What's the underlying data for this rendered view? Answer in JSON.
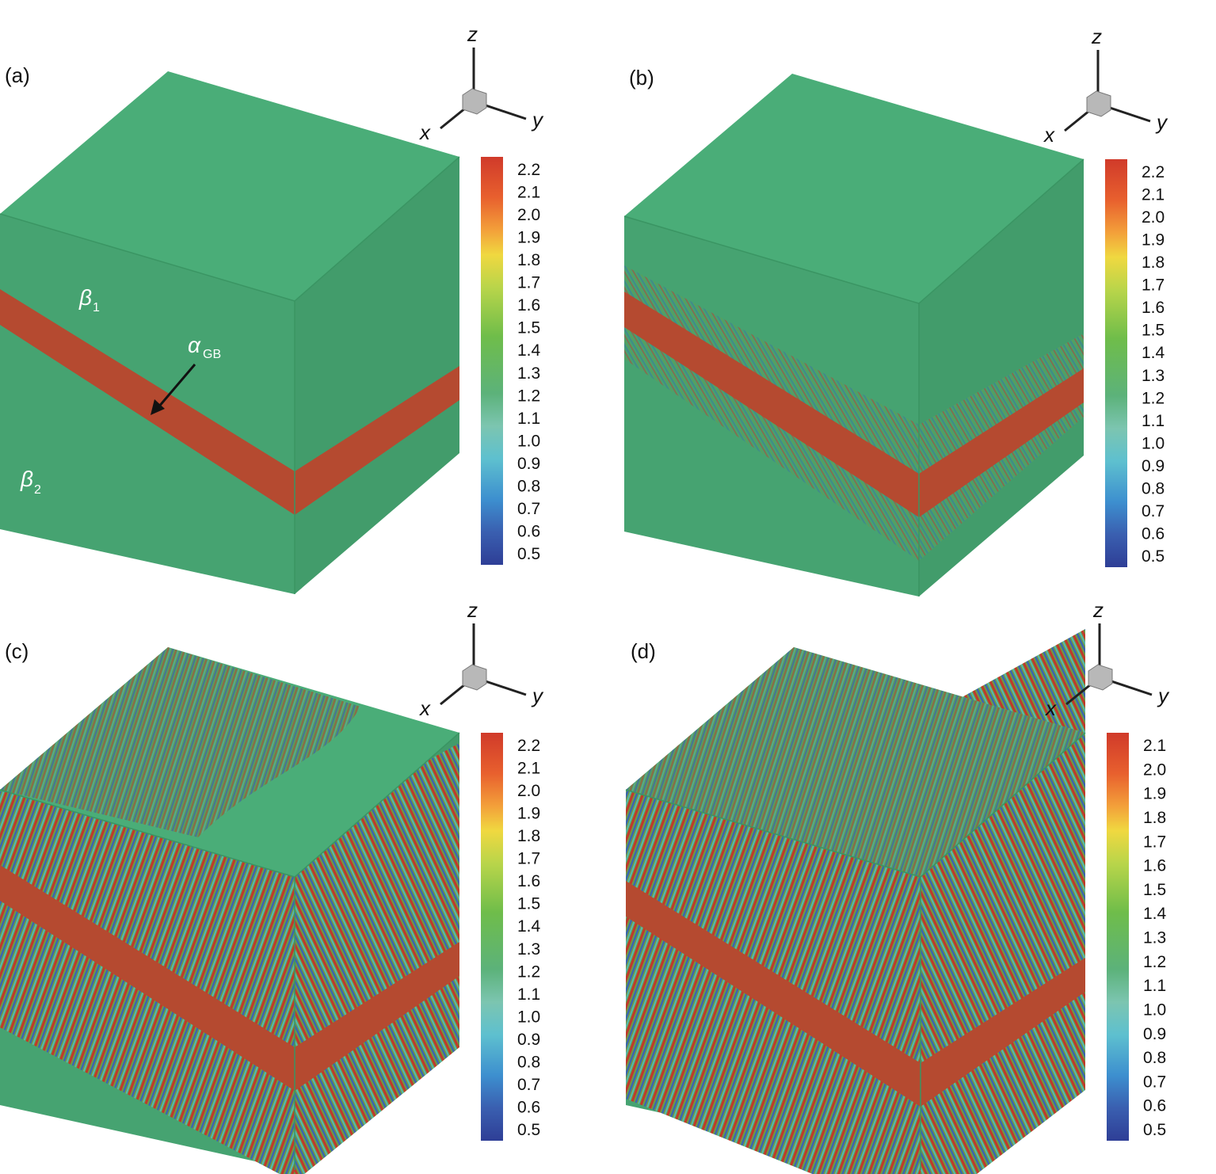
{
  "figure": {
    "background": "#ffffff",
    "cube_colors": {
      "top": "#4aad78",
      "left": "#46a371",
      "right": "#429c6b",
      "edge": "#3a9563",
      "band": "#b54a30",
      "stripe_red": "#c0392b",
      "stripe_blue": "#3a66b0",
      "stripe_green": "#6f9a45",
      "stripe_cyan": "#55b8b0"
    },
    "axis_labels": {
      "x": "x",
      "y": "y",
      "z": "z"
    },
    "panels": [
      {
        "label": "(a)",
        "stripe_level": 0,
        "annotations": {
          "beta1": {
            "symbol": "β",
            "sub": "1"
          },
          "beta2": {
            "symbol": "β",
            "sub": "2"
          },
          "alpha": {
            "symbol": "α",
            "sub": "GB"
          }
        },
        "colorbar": {
          "ticks": [
            "2.2",
            "2.1",
            "2.0",
            "1.9",
            "1.8",
            "1.7",
            "1.6",
            "1.5",
            "1.4",
            "1.3",
            "1.2",
            "1.1",
            "1.0",
            "0.9",
            "0.8",
            "0.7",
            "0.6",
            "0.5"
          ]
        }
      },
      {
        "label": "(b)",
        "stripe_level": 1,
        "colorbar": {
          "ticks": [
            "2.2",
            "2.1",
            "2.0",
            "1.9",
            "1.8",
            "1.7",
            "1.6",
            "1.5",
            "1.4",
            "1.3",
            "1.2",
            "1.1",
            "1.0",
            "0.9",
            "0.8",
            "0.7",
            "0.6",
            "0.5"
          ]
        }
      },
      {
        "label": "(c)",
        "stripe_level": 2,
        "colorbar": {
          "ticks": [
            "2.2",
            "2.1",
            "2.0",
            "1.9",
            "1.8",
            "1.7",
            "1.6",
            "1.5",
            "1.4",
            "1.3",
            "1.2",
            "1.1",
            "1.0",
            "0.9",
            "0.8",
            "0.7",
            "0.6",
            "0.5"
          ]
        }
      },
      {
        "label": "(d)",
        "stripe_level": 3,
        "colorbar": {
          "ticks": [
            "2.1",
            "2.0",
            "1.9",
            "1.8",
            "1.7",
            "1.6",
            "1.5",
            "1.4",
            "1.3",
            "1.2",
            "1.1",
            "1.0",
            "0.9",
            "0.8",
            "0.7",
            "0.6",
            "0.5"
          ]
        }
      }
    ]
  }
}
